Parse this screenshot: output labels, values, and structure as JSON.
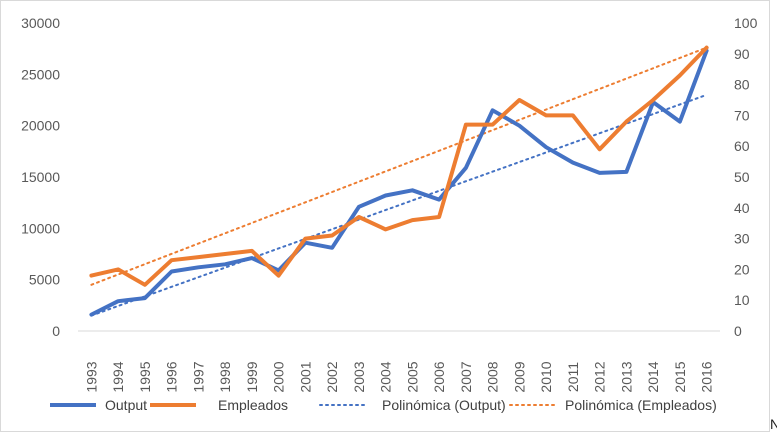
{
  "chart_data": {
    "type": "line",
    "title": "",
    "x": [
      "1993",
      "1994",
      "1995",
      "1996",
      "1997",
      "1998",
      "1999",
      "2000",
      "2001",
      "2002",
      "2003",
      "2004",
      "2005",
      "2006",
      "2007",
      "2008",
      "2009",
      "2010",
      "2011",
      "2012",
      "2013",
      "2014",
      "2015",
      "2016"
    ],
    "y_left_ticks": [
      "0",
      "5000",
      "10000",
      "15000",
      "20000",
      "25000",
      "30000"
    ],
    "y_right_ticks": [
      "0",
      "10",
      "20",
      "30",
      "40",
      "50",
      "60",
      "70",
      "80",
      "90",
      "100"
    ],
    "ylim_left": [
      0,
      30000
    ],
    "ylim_right": [
      0,
      100
    ],
    "grid": false,
    "legend_position": "bottom",
    "series": [
      {
        "name": "Output",
        "axis": "left",
        "color": "#4472C4",
        "values": [
          1600,
          2900,
          3200,
          5800,
          6200,
          6500,
          7100,
          5900,
          8600,
          8100,
          12100,
          13200,
          13700,
          12800,
          15900,
          21500,
          20000,
          17900,
          16400,
          15400,
          15500,
          22300,
          20400,
          27300
        ]
      },
      {
        "name": "Empleados",
        "axis": "right",
        "color": "#ED7D31",
        "values": [
          18,
          20,
          15,
          23,
          24,
          25,
          26,
          18,
          30,
          31,
          37,
          33,
          36,
          37,
          67,
          67,
          75,
          70,
          70,
          59,
          68,
          75,
          83,
          92
        ]
      },
      {
        "name": "Polinómica (Output)",
        "axis": "left",
        "color": "#4472C4",
        "style": "dotted",
        "trendline": true,
        "from": 1500,
        "to": 23000
      },
      {
        "name": "Polinómica (Empleados)",
        "axis": "right",
        "color": "#ED7D31",
        "style": "dotted",
        "trendline": true,
        "from": 15,
        "to": 92
      }
    ]
  },
  "edge_char": "N"
}
